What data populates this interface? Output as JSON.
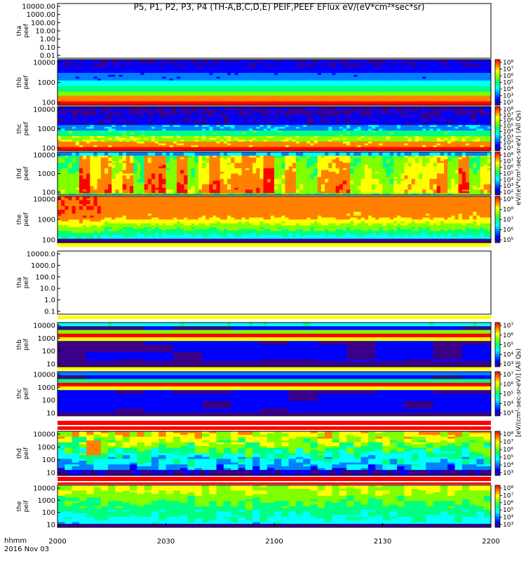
{
  "title": "P5, P1, P2, P3, P4 (TH-A,B,C,D,E) PEIF,PEEF EFlux eV/(eV*cm²*sec*sr)",
  "x_axis": {
    "ticks": [
      "2000",
      "2030",
      "2100",
      "2130",
      "2200"
    ],
    "label_line1": "hhmm",
    "label_line2": "2016 Nov 03"
  },
  "colorbar_titles": {
    "upper": "eV/(eV*cm²-sec-sr-eV) (All Qs)",
    "lower": "[eV/(cm²-sec-sr-eV)] (All Qs)"
  },
  "colors": {
    "spectrum": [
      "#3a0088",
      "#0000ff",
      "#0080ff",
      "#00ffff",
      "#00ff80",
      "#80ff00",
      "#ffff00",
      "#ff8000",
      "#ff0000"
    ]
  },
  "chart_data": {
    "type": "heatmap",
    "x": {
      "unit": "hhmm",
      "ticks": [
        "2000",
        "2030",
        "2100",
        "2130",
        "2200"
      ],
      "xlim": [
        "2000",
        "2200"
      ]
    },
    "panels": [
      {
        "id": "tha-peef",
        "label_line1": "tha",
        "label_line2": "peef",
        "yticks": [
          "10000.00",
          "1000.00",
          "100.00",
          "10.00",
          "1.00",
          "0.10",
          "0.01"
        ],
        "empty": true,
        "colorbar": null
      },
      {
        "id": "thb-peef",
        "label_line1": "thb",
        "label_line2": "peef",
        "yticks": [
          "10000",
          "1000",
          "100"
        ],
        "colorbar": {
          "labels": [
            "10⁸",
            "10⁷",
            "10⁶",
            "10⁵",
            "10⁴",
            "10³",
            "10²"
          ]
        }
      },
      {
        "id": "thc-peef",
        "label_line1": "thc",
        "label_line2": "peef",
        "yticks": [
          "10000",
          "1000",
          "100"
        ],
        "colorbar": {
          "labels": [
            "10⁸",
            "10⁷",
            "10⁶",
            "10⁵",
            "10⁴",
            "10³",
            "10²",
            "10¹"
          ]
        }
      },
      {
        "id": "thd-peef",
        "label_line1": "thd",
        "label_line2": "peef",
        "yticks": [
          "10000",
          "1000",
          "100"
        ],
        "colorbar": {
          "labels": [
            "10⁸",
            "10⁷",
            "10⁶",
            "10⁵",
            "10⁴",
            "10³",
            "10²"
          ]
        }
      },
      {
        "id": "the-peef",
        "label_line1": "the",
        "label_line2": "peef",
        "yticks": [
          "10000",
          "1000",
          "100"
        ],
        "colorbar": {
          "labels": [
            "10⁹",
            "10⁸",
            "10⁷",
            "10⁶",
            "10⁵"
          ]
        }
      },
      {
        "id": "tha-peif",
        "label_line1": "tha",
        "label_line2": "peif",
        "yticks": [
          "10000.0",
          "1000.0",
          "100.0",
          "10.0",
          "1.0",
          "0.1"
        ],
        "empty": true,
        "colorbar": null
      },
      {
        "id": "thb-peif",
        "label_line1": "thb",
        "label_line2": "peif",
        "yticks": [
          "10000",
          "1000",
          "100",
          "10"
        ],
        "colorbar": {
          "labels": [
            "10⁷",
            "10⁶",
            "10⁵",
            "10⁴",
            "10³"
          ]
        }
      },
      {
        "id": "thc-peif",
        "label_line1": "thc",
        "label_line2": "peif",
        "yticks": [
          "10000",
          "1000",
          "100",
          "10"
        ],
        "colorbar": {
          "labels": [
            "10⁷",
            "10⁶",
            "10⁵",
            "10⁴",
            "10³"
          ]
        }
      },
      {
        "id": "thd-peif",
        "label_line1": "thd",
        "label_line2": "peif",
        "yticks": [
          "10000",
          "1000",
          "100",
          "10"
        ],
        "colorbar": {
          "labels": [
            "10⁸",
            "10⁷",
            "10⁶",
            "10⁵",
            "10⁴",
            "10³"
          ]
        }
      },
      {
        "id": "the-peif",
        "label_line1": "the",
        "label_line2": "peif",
        "yticks": [
          "10000",
          "1000",
          "100",
          "10"
        ],
        "colorbar": {
          "labels": [
            "10⁸",
            "10⁷",
            "10⁶",
            "10⁵",
            "10⁴",
            "10³"
          ]
        }
      }
    ]
  }
}
